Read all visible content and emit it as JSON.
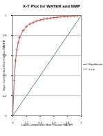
{
  "chart_data": {
    "type": "line",
    "title": "X-Y Plot for WATER and NMP",
    "x_label": "Liquid Composition Mole Fraction WATER",
    "y_label": "Vapor Composition Mole Fraction WATER",
    "x": [
      0,
      0.02,
      0.04,
      0.06,
      0.08,
      0.1,
      0.15,
      0.2,
      0.25,
      0.3,
      0.35,
      0.4,
      0.45,
      0.5,
      0.55,
      0.6,
      0.65,
      0.7,
      0.75,
      0.8,
      0.85,
      0.9,
      0.95,
      1
    ],
    "series": [
      {
        "name": "Equilibrium",
        "color": "#c0504d",
        "marker": "plus",
        "values": [
          0,
          0.35,
          0.55,
          0.66,
          0.73,
          0.78,
          0.85,
          0.89,
          0.915,
          0.93,
          0.945,
          0.955,
          0.962,
          0.968,
          0.974,
          0.978,
          0.982,
          0.986,
          0.989,
          0.992,
          0.994,
          0.996,
          0.998,
          1
        ]
      },
      {
        "name": "x = y",
        "color": "#4f81bd",
        "values": [
          0,
          0.02,
          0.04,
          0.06,
          0.08,
          0.1,
          0.15,
          0.2,
          0.25,
          0.3,
          0.35,
          0.4,
          0.45,
          0.5,
          0.55,
          0.6,
          0.65,
          0.7,
          0.75,
          0.8,
          0.85,
          0.9,
          0.95,
          1
        ]
      }
    ],
    "xlim": [
      0,
      1
    ],
    "xticks": [
      0,
      0.2,
      0.4,
      0.6,
      0.8,
      1
    ],
    "ylim": [
      0,
      1
    ],
    "yticks": [
      0,
      0.2,
      0.4,
      0.6,
      0.8,
      1
    ],
    "grid": true,
    "legend": "right"
  }
}
